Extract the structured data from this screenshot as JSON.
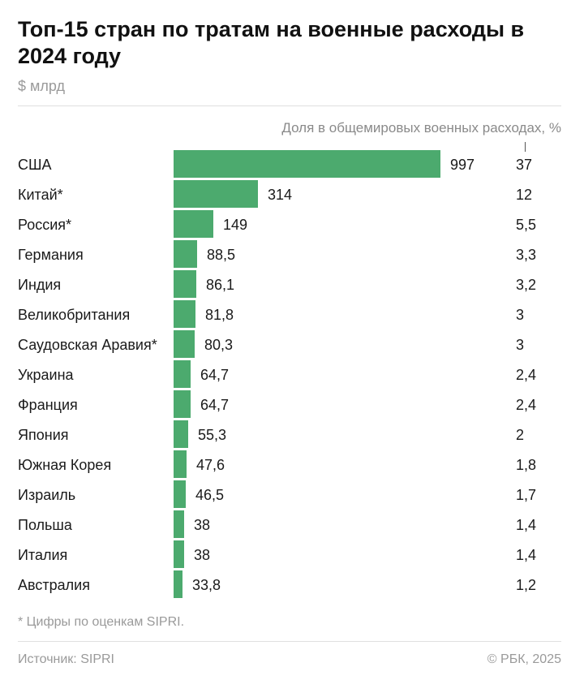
{
  "title": "Топ-15 стран по тратам на военные расходы в 2024 году",
  "units": "$ млрд",
  "share_header": "Доля в общемировых военных расходах, %",
  "footnote": "* Цифры по оценкам SIPRI.",
  "source": "Источник: SIPRI",
  "copyright": "© РБК, 2025",
  "colors": {
    "bar": "#4caa6e"
  },
  "chart_data": {
    "type": "bar",
    "orientation": "horizontal",
    "title": "Топ-15 стран по тратам на военные расходы в 2024 году",
    "units": "$ млрд",
    "categories": [
      "США",
      "Китай*",
      "Россия*",
      "Германия",
      "Индия",
      "Великобритания",
      "Саудовская Аравия*",
      "Украина",
      "Франция",
      "Япония",
      "Южная Корея",
      "Израиль",
      "Польша",
      "Италия",
      "Австралия"
    ],
    "values": [
      997,
      314,
      149,
      88.5,
      86.1,
      81.8,
      80.3,
      64.7,
      64.7,
      55.3,
      47.6,
      46.5,
      38,
      38,
      33.8
    ],
    "value_labels": [
      "997",
      "314",
      "149",
      "88,5",
      "86,1",
      "81,8",
      "80,3",
      "64,7",
      "64,7",
      "55,3",
      "47,6",
      "46,5",
      "38",
      "38",
      "33,8"
    ],
    "share_labels": [
      "37",
      "12",
      "5,5",
      "3,3",
      "3,2",
      "3",
      "3",
      "2,4",
      "2,4",
      "2",
      "1,8",
      "1,7",
      "1,4",
      "1,4",
      "1,2"
    ],
    "shares": [
      37,
      12,
      5.5,
      3.3,
      3.2,
      3,
      3,
      2.4,
      2.4,
      2,
      1.8,
      1.7,
      1.4,
      1.4,
      1.2
    ],
    "grid": false,
    "legend": "none"
  }
}
